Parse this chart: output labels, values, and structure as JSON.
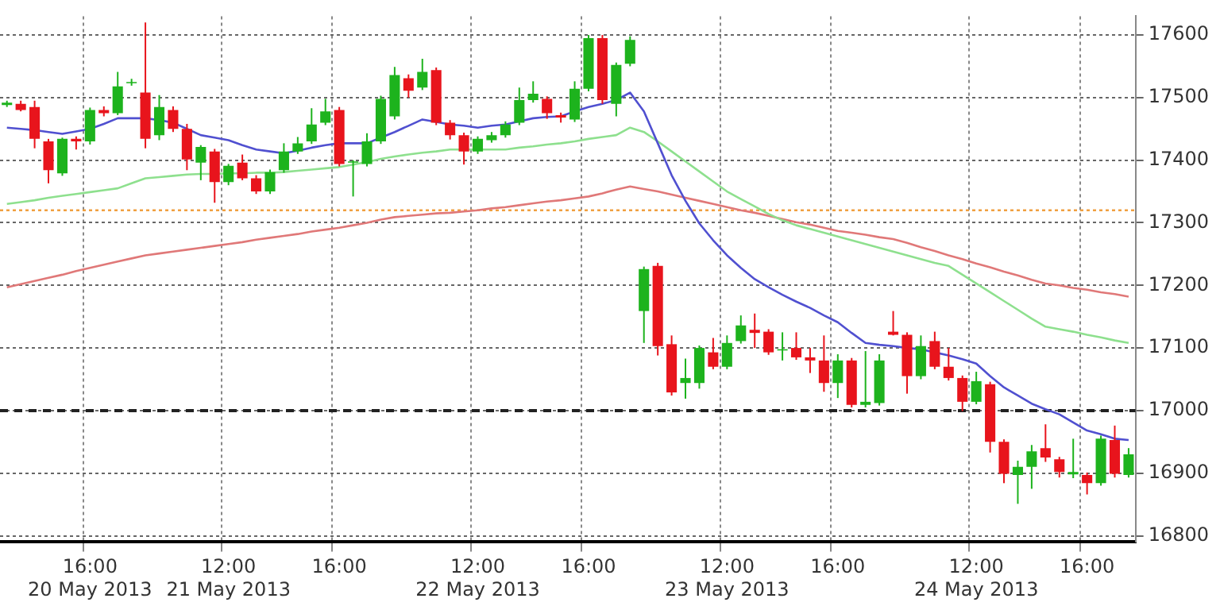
{
  "chart_data": {
    "type": "candlestick",
    "legend": false,
    "grid": true,
    "marker": "none",
    "categories": [
      null,
      null,
      null,
      null,
      null,
      null,
      "16:00\n20 May 2013",
      null,
      null,
      null,
      null,
      null,
      null,
      null,
      null,
      null,
      "12:00\n21 May 2013",
      null,
      null,
      null,
      null,
      null,
      null,
      null,
      "16:00",
      null,
      null,
      null,
      null,
      null,
      null,
      null,
      null,
      null,
      "12:00\n22 May 2013",
      null,
      null,
      null,
      null,
      null,
      null,
      null,
      "16:00",
      null,
      null,
      null,
      null,
      null,
      null,
      null,
      null,
      null,
      "12:00\n23 May 2013",
      null,
      null,
      null,
      null,
      null,
      null,
      null,
      "16:00",
      null,
      null,
      null,
      null,
      null,
      null,
      null,
      null,
      null,
      "12:00\n24 May 2013",
      null,
      null,
      null,
      null,
      null,
      null,
      null,
      "16:00",
      null,
      null,
      null
    ],
    "ylim": [
      16790,
      17630
    ],
    "yticks": [
      16800,
      16900,
      17000,
      17100,
      17200,
      17300,
      17400,
      17500,
      17600
    ],
    "ohlc": [
      [
        17488,
        17495,
        17485,
        17492
      ],
      [
        17490,
        17495,
        17478,
        17480
      ],
      [
        17485,
        17495,
        17419,
        17434
      ],
      [
        17430,
        17434,
        17363,
        17384
      ],
      [
        17379,
        17436,
        17375,
        17434
      ],
      [
        17434,
        17438,
        17417,
        17430
      ],
      [
        17430,
        17484,
        17425,
        17480
      ],
      [
        17480,
        17486,
        17470,
        17475
      ],
      [
        17475,
        17541,
        17472,
        17518
      ],
      [
        17523,
        17530,
        17519,
        17525
      ],
      [
        17508,
        17620,
        17419,
        17434
      ],
      [
        17440,
        17504,
        17432,
        17485
      ],
      [
        17480,
        17486,
        17445,
        17450
      ],
      [
        17450,
        17458,
        17384,
        17401
      ],
      [
        17396,
        17424,
        17368,
        17421
      ],
      [
        17414,
        17418,
        17332,
        17365
      ],
      [
        17365,
        17394,
        17360,
        17391
      ],
      [
        17396,
        17409,
        17368,
        17371
      ],
      [
        17371,
        17376,
        17346,
        17350
      ],
      [
        17350,
        17385,
        17346,
        17381
      ],
      [
        17384,
        17427,
        17380,
        17414
      ],
      [
        17414,
        17437,
        17410,
        17427
      ],
      [
        17430,
        17483,
        17426,
        17457
      ],
      [
        17460,
        17498,
        17456,
        17478
      ],
      [
        17480,
        17485,
        17390,
        17394
      ],
      [
        17396,
        17400,
        17342,
        17398
      ],
      [
        17394,
        17443,
        17390,
        17430
      ],
      [
        17430,
        17503,
        17426,
        17498
      ],
      [
        17470,
        17549,
        17465,
        17536
      ],
      [
        17531,
        17537,
        17500,
        17511
      ],
      [
        17516,
        17562,
        17512,
        17541
      ],
      [
        17544,
        17548,
        17456,
        17460
      ],
      [
        17460,
        17464,
        17433,
        17440
      ],
      [
        17440,
        17444,
        17393,
        17414
      ],
      [
        17414,
        17438,
        17410,
        17434
      ],
      [
        17432,
        17445,
        17428,
        17440
      ],
      [
        17440,
        17462,
        17436,
        17457
      ],
      [
        17460,
        17516,
        17456,
        17496
      ],
      [
        17496,
        17526,
        17492,
        17506
      ],
      [
        17498,
        17502,
        17466,
        17475
      ],
      [
        17472,
        17476,
        17460,
        17468
      ],
      [
        17465,
        17526,
        17461,
        17514
      ],
      [
        17514,
        17600,
        17510,
        17595
      ],
      [
        17595,
        17600,
        17490,
        17496
      ],
      [
        17490,
        17556,
        17470,
        17552
      ],
      [
        17554,
        17598,
        17550,
        17592
      ],
      [
        17159,
        17230,
        17108,
        17226
      ],
      [
        17231,
        17236,
        17088,
        17103
      ],
      [
        17106,
        17120,
        17024,
        17029
      ],
      [
        17044,
        17083,
        17019,
        17052
      ],
      [
        17044,
        17104,
        17035,
        17100
      ],
      [
        17093,
        17116,
        17066,
        17070
      ],
      [
        17070,
        17120,
        17066,
        17108
      ],
      [
        17111,
        17152,
        17107,
        17136
      ],
      [
        17129,
        17155,
        17100,
        17124
      ],
      [
        17126,
        17130,
        17089,
        17093
      ],
      [
        17096,
        17125,
        17080,
        17098
      ],
      [
        17100,
        17125,
        17081,
        17085
      ],
      [
        17085,
        17100,
        17060,
        17080
      ],
      [
        17080,
        17120,
        17030,
        17044
      ],
      [
        17044,
        17090,
        17020,
        17080
      ],
      [
        17080,
        17084,
        17005,
        17009
      ],
      [
        17009,
        17095,
        17005,
        17014
      ],
      [
        17012,
        17090,
        17008,
        17080
      ],
      [
        17126,
        17159,
        17120,
        17121
      ],
      [
        17121,
        17125,
        17027,
        17055
      ],
      [
        17055,
        17120,
        17050,
        17103
      ],
      [
        17111,
        17126,
        17066,
        17070
      ],
      [
        17070,
        17100,
        17048,
        17052
      ],
      [
        17052,
        17056,
        16999,
        17014
      ],
      [
        17014,
        17062,
        17010,
        17047
      ],
      [
        17042,
        17046,
        16933,
        16950
      ],
      [
        16950,
        16954,
        16884,
        16899
      ],
      [
        16897,
        16920,
        16851,
        16910
      ],
      [
        16910,
        16945,
        16875,
        16935
      ],
      [
        16940,
        16978,
        16918,
        16925
      ],
      [
        16922,
        16926,
        16893,
        16902
      ],
      [
        16898,
        16955,
        16892,
        16902
      ],
      [
        16897,
        16901,
        16866,
        16884
      ],
      [
        16884,
        16960,
        16880,
        16955
      ],
      [
        16953,
        16976,
        16893,
        16899
      ],
      [
        16897,
        16940,
        16893,
        16930
      ]
    ],
    "colors": [
      "#1db31d",
      "#e8141c",
      "#e8141c",
      "#e8141c",
      "#1db31d",
      "#e8141c",
      "#1db31d",
      "#e8141c",
      "#1db31d",
      "#1db31d",
      "#e8141c",
      "#1db31d",
      "#e8141c",
      "#e8141c",
      "#1db31d",
      "#e8141c",
      "#1db31d",
      "#e8141c",
      "#e8141c",
      "#1db31d",
      "#1db31d",
      "#1db31d",
      "#1db31d",
      "#1db31d",
      "#e8141c",
      "#1db31d",
      "#1db31d",
      "#1db31d",
      "#1db31d",
      "#e8141c",
      "#1db31d",
      "#e8141c",
      "#e8141c",
      "#e8141c",
      "#1db31d",
      "#1db31d",
      "#1db31d",
      "#1db31d",
      "#1db31d",
      "#e8141c",
      "#e8141c",
      "#1db31d",
      "#1db31d",
      "#e8141c",
      "#1db31d",
      "#1db31d",
      "#1db31d",
      "#e8141c",
      "#e8141c",
      "#1db31d",
      "#1db31d",
      "#e8141c",
      "#1db31d",
      "#1db31d",
      "#e8141c",
      "#e8141c",
      "#1db31d",
      "#e8141c",
      "#e8141c",
      "#e8141c",
      "#1db31d",
      "#e8141c",
      "#1db31d",
      "#1db31d",
      "#e8141c",
      "#e8141c",
      "#1db31d",
      "#e8141c",
      "#e8141c",
      "#e8141c",
      "#1db31d",
      "#e8141c",
      "#e8141c",
      "#1db31d",
      "#1db31d",
      "#e8141c",
      "#e8141c",
      "#1db31d",
      "#e8141c",
      "#1db31d",
      "#e8141c",
      "#1db31d"
    ],
    "series": [
      {
        "type": "line",
        "color": "#5050d0",
        "values": [
          17452,
          17450,
          17448,
          17445,
          17442,
          17446,
          17450,
          17458,
          17467,
          17467,
          17467,
          17464,
          17460,
          17450,
          17440,
          17436,
          17432,
          17424,
          17417,
          17414,
          17411,
          17415,
          17420,
          17424,
          17427,
          17427,
          17427,
          17436,
          17445,
          17455,
          17465,
          17461,
          17457,
          17455,
          17452,
          17455,
          17457,
          17462,
          17467,
          17469,
          17470,
          17478,
          17485,
          17490,
          17496,
          17508,
          17478,
          17427,
          17376,
          17335,
          17299,
          17272,
          17248,
          17228,
          17210,
          17197,
          17185,
          17174,
          17164,
          17152,
          17141,
          17124,
          17108,
          17105,
          17103,
          17100,
          17098,
          17093,
          17088,
          17082,
          17075,
          17055,
          17037,
          17024,
          17011,
          17002,
          16994,
          16981,
          16968,
          16962,
          16955,
          16953
        ]
      },
      {
        "type": "line",
        "color": "#8ee08e",
        "values": [
          17330,
          17333,
          17336,
          17340,
          17343,
          17346,
          17349,
          17352,
          17355,
          17363,
          17371,
          17373,
          17375,
          17377,
          17378,
          17378,
          17379,
          17379,
          17380,
          17380,
          17381,
          17383,
          17385,
          17387,
          17389,
          17393,
          17397,
          17402,
          17406,
          17409,
          17412,
          17414,
          17417,
          17417,
          17417,
          17417,
          17417,
          17420,
          17422,
          17425,
          17427,
          17430,
          17434,
          17437,
          17440,
          17452,
          17445,
          17430,
          17414,
          17398,
          17382,
          17366,
          17350,
          17338,
          17326,
          17314,
          17304,
          17296,
          17290,
          17284,
          17278,
          17272,
          17266,
          17260,
          17254,
          17248,
          17242,
          17236,
          17231,
          17217,
          17203,
          17189,
          17175,
          17161,
          17147,
          17134,
          17130,
          17126,
          17121,
          17117,
          17112,
          17108
        ]
      },
      {
        "type": "line",
        "color": "#e07878",
        "values": [
          17197,
          17202,
          17207,
          17212,
          17217,
          17223,
          17228,
          17233,
          17238,
          17243,
          17248,
          17251,
          17254,
          17257,
          17260,
          17263,
          17266,
          17269,
          17273,
          17276,
          17279,
          17282,
          17286,
          17289,
          17292,
          17296,
          17300,
          17305,
          17309,
          17311,
          17313,
          17315,
          17316,
          17318,
          17320,
          17323,
          17325,
          17328,
          17331,
          17334,
          17336,
          17339,
          17342,
          17347,
          17353,
          17358,
          17354,
          17350,
          17345,
          17340,
          17335,
          17330,
          17325,
          17320,
          17316,
          17311,
          17306,
          17301,
          17297,
          17292,
          17287,
          17284,
          17281,
          17277,
          17274,
          17268,
          17261,
          17255,
          17248,
          17242,
          17235,
          17229,
          17222,
          17216,
          17209,
          17203,
          17200,
          17196,
          17193,
          17189,
          17186,
          17182
        ]
      }
    ],
    "ref_lines": [
      {
        "axis": "y",
        "value": 17320,
        "color": "#f0a040",
        "line_style": "dotted"
      },
      {
        "axis": "y",
        "value": 17000,
        "color": "#222222",
        "line_style": "dashed"
      }
    ]
  }
}
